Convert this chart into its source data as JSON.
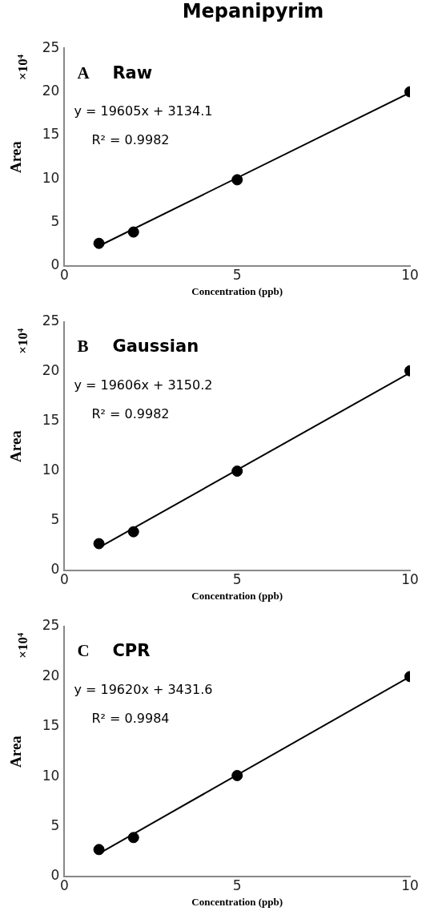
{
  "chart_data": [
    {
      "type": "scatter",
      "title": "Mepanipyrim",
      "subtitle": "Raw",
      "xlabel": "Concentration (ppb)",
      "ylabel": "Area",
      "annotations": [
        "A",
        "y = 19605x + 3134.1",
        "R² = 0.9982",
        "×10⁴"
      ],
      "grid": false,
      "legend": false,
      "xlim": [
        0,
        10
      ],
      "xticks": [
        0,
        5,
        10
      ],
      "ylim": [
        0,
        25
      ],
      "yticks": [
        0,
        5,
        10,
        15,
        20,
        25
      ],
      "series": [
        {
          "type": "scatter",
          "marker": "circle",
          "color": "#000000",
          "x": [
            1,
            2,
            5,
            10
          ],
          "values": [
            2.6,
            3.9,
            9.9,
            20.0
          ]
        },
        {
          "type": "line",
          "marker": "none",
          "color": "#000000",
          "x": [
            1,
            10
          ],
          "values": [
            2.3,
            19.9
          ]
        }
      ]
    },
    {
      "type": "scatter",
      "title": "Gaussian",
      "xlabel": "Concentration (ppb)",
      "ylabel": "Area",
      "annotations": [
        "B",
        "y = 19606x + 3150.2",
        "R² = 0.9982",
        "×10⁴"
      ],
      "grid": false,
      "legend": false,
      "xlim": [
        0,
        10
      ],
      "xticks": [
        0,
        5,
        10
      ],
      "ylim": [
        0,
        25
      ],
      "yticks": [
        0,
        5,
        10,
        15,
        20,
        25
      ],
      "series": [
        {
          "type": "scatter",
          "marker": "circle",
          "color": "#000000",
          "x": [
            1,
            2,
            5,
            10
          ],
          "values": [
            2.7,
            3.9,
            10.0,
            20.1
          ]
        },
        {
          "type": "line",
          "marker": "none",
          "color": "#000000",
          "x": [
            1,
            10
          ],
          "values": [
            2.3,
            19.9
          ]
        }
      ]
    },
    {
      "type": "scatter",
      "title": "CPR",
      "xlabel": "Concentration (ppb)",
      "ylabel": "Area",
      "annotations": [
        "C",
        "y = 19620x + 3431.6",
        "R² = 0.9984",
        "×10⁴"
      ],
      "grid": false,
      "legend": false,
      "xlim": [
        0,
        10
      ],
      "xticks": [
        0,
        5,
        10
      ],
      "ylim": [
        0,
        25
      ],
      "yticks": [
        0,
        5,
        10,
        15,
        20,
        25
      ],
      "series": [
        {
          "type": "scatter",
          "marker": "circle",
          "color": "#000000",
          "x": [
            1,
            2,
            5,
            10
          ],
          "values": [
            2.7,
            3.9,
            10.1,
            20.0
          ]
        },
        {
          "type": "line",
          "marker": "none",
          "color": "#000000",
          "x": [
            1,
            10
          ],
          "values": [
            2.3,
            20.0
          ]
        }
      ]
    }
  ]
}
